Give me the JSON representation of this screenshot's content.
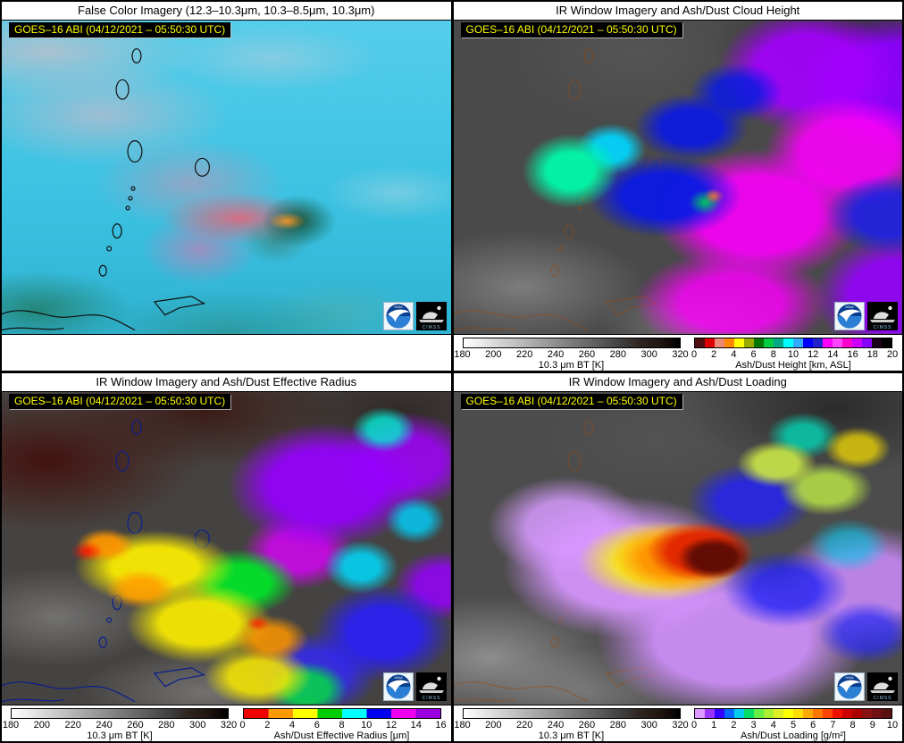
{
  "panels": [
    {
      "title": "False Color Imagery (12.3–10.3μm, 10.3–8.5μm, 10.3μm)",
      "timestamp": "GOES–16 ABI (04/12/2021 – 05:50:30 UTC)"
    },
    {
      "title": "IR Window Imagery and Ash/Dust Cloud Height",
      "timestamp": "GOES–16 ABI (04/12/2021 – 05:50:30 UTC)",
      "bt_bar": {
        "label": "10.3 μm BT [K]",
        "ticks": [
          "180",
          "200",
          "220",
          "240",
          "260",
          "280",
          "300",
          "320"
        ],
        "colors": [
          "#ffffff",
          "#e8e8e8",
          "#d0d0d0",
          "#b8b8b8",
          "#a0a0a0",
          "#888888",
          "#707070",
          "#585858",
          "#404040",
          "#2e2420",
          "#201410",
          "#000000"
        ]
      },
      "data_bar": {
        "label": "Ash/Dust Height [km, ASL]",
        "ticks": [
          "0",
          "2",
          "4",
          "6",
          "8",
          "10",
          "12",
          "14",
          "16",
          "18",
          "20"
        ],
        "colors": [
          "#501010",
          "#dd0000",
          "#ee8877",
          "#ff8800",
          "#ffff00",
          "#99aa00",
          "#007700",
          "#00cc44",
          "#00aa88",
          "#00ffff",
          "#33aaff",
          "#0000ff",
          "#2222cc",
          "#ff00ff",
          "#ff44ff",
          "#ff00cc",
          "#cc00ff",
          "#8800ff",
          "#1a001a",
          "#000000"
        ]
      }
    },
    {
      "title": "IR Window Imagery and Ash/Dust Effective Radius",
      "timestamp": "GOES–16 ABI (04/12/2021 – 05:50:30 UTC)",
      "bt_bar": {
        "label": "10.3 μm BT [K]",
        "ticks": [
          "180",
          "200",
          "220",
          "240",
          "260",
          "280",
          "300",
          "320"
        ],
        "colors": [
          "#ffffff",
          "#e8e8e8",
          "#d0d0d0",
          "#b8b8b8",
          "#a0a0a0",
          "#888888",
          "#707070",
          "#585858",
          "#404040",
          "#2e2420",
          "#201410",
          "#000000"
        ]
      },
      "data_bar": {
        "label": "Ash/Dust Effective Radius [μm]",
        "ticks": [
          "0",
          "2",
          "4",
          "6",
          "8",
          "10",
          "12",
          "14",
          "16"
        ],
        "colors": [
          "#ee0000",
          "#ff9900",
          "#ffff00",
          "#00cc00",
          "#00ffff",
          "#0000ee",
          "#ee00ee",
          "#9900dd"
        ]
      }
    },
    {
      "title": "IR Window Imagery and Ash/Dust Loading",
      "timestamp": "GOES–16 ABI (04/12/2021 – 05:50:30 UTC)",
      "bt_bar": {
        "label": "10.3 μm BT [K]",
        "ticks": [
          "180",
          "200",
          "220",
          "240",
          "260",
          "280",
          "300",
          "320"
        ],
        "colors": [
          "#ffffff",
          "#e8e8e8",
          "#d0d0d0",
          "#b8b8b8",
          "#a0a0a0",
          "#888888",
          "#707070",
          "#585858",
          "#404040",
          "#2e2420",
          "#201410",
          "#000000"
        ]
      },
      "data_bar": {
        "label": "Ash/Dust Loading [g/m²]",
        "ticks": [
          "0",
          "1",
          "2",
          "3",
          "4",
          "5",
          "6",
          "7",
          "8",
          "9",
          "10"
        ],
        "colors": [
          "#dd99ff",
          "#9933ff",
          "#3300ff",
          "#0066ff",
          "#00ccee",
          "#00dd66",
          "#66ee44",
          "#aaee33",
          "#ddee22",
          "#ffff00",
          "#ffdd00",
          "#ffaa00",
          "#ff7700",
          "#ff4400",
          "#ee1100",
          "#cc0000",
          "#aa0000",
          "#881111",
          "#701010",
          "#5a1010"
        ]
      }
    }
  ],
  "logos": {
    "noaa": "NOAA",
    "cimss": "CIMSS"
  },
  "chart_data": [
    {
      "type": "heatmap",
      "title": "False Color Imagery (12.3–10.3μm, 10.3–8.5μm, 10.3μm)",
      "timestamp": "GOES–16 ABI (04/12/2021 – 05:50:30 UTC)",
      "description": "RGB false-color satellite scene over the Lesser Antilles: cyan ocean/cloud background, pale pink cirrus, pink-red volcanic ash plume with dark green head and orange hot spot near the volcano, black coastline outlines",
      "colorbars": []
    },
    {
      "type": "heatmap",
      "title": "IR Window Imagery and Ash/Dust Cloud Height",
      "timestamp": "GOES–16 ABI (04/12/2021 – 05:50:30 UTC)",
      "description": "Gray IR window background; retrieved ash cloud height overlay: spring-green ~8-9 km patch west, cyan ~10 km, blue ~11-12 km core, magenta ~13-15 km broad region, purple ~16-18 km east",
      "colorbars": [
        {
          "label": "10.3 μm BT [K]",
          "range": [
            180,
            320
          ],
          "ticks": [
            180,
            200,
            220,
            240,
            260,
            280,
            300,
            320
          ]
        },
        {
          "label": "Ash/Dust Height [km, ASL]",
          "range": [
            0,
            20
          ],
          "ticks": [
            0,
            2,
            4,
            6,
            8,
            10,
            12,
            14,
            16,
            18,
            20
          ]
        }
      ]
    },
    {
      "type": "heatmap",
      "title": "IR Window Imagery and Ash/Dust Effective Radius",
      "timestamp": "GOES–16 ABI (04/12/2021 – 05:50:30 UTC)",
      "description": "Dark maroon/gray IR background; effective radius overlay: red/orange ~1-3 μm at western plume edge, broad yellow ~4-6 μm, green ~6-8 μm blob center, cyan/blue ~8-12 μm southeast, magenta/purple ~12-16 μm northeast",
      "colorbars": [
        {
          "label": "10.3 μm BT [K]",
          "range": [
            180,
            320
          ],
          "ticks": [
            180,
            200,
            220,
            240,
            260,
            280,
            300,
            320
          ]
        },
        {
          "label": "Ash/Dust Effective Radius [μm]",
          "range": [
            0,
            16
          ],
          "ticks": [
            0,
            2,
            4,
            6,
            8,
            10,
            12,
            14,
            16
          ]
        }
      ]
    },
    {
      "type": "heatmap",
      "title": "IR Window Imagery and Ash/Dust Loading",
      "timestamp": "GOES–16 ABI (04/12/2021 – 05:50:30 UTC)",
      "description": "Gray IR background; ash loading overlay: broad lavender ~0-1 g/m² plume, blue ~1-2 g/m² patches, yellow-green ~3-4 g/m² northeast, central maximum ringed yellow-orange-red rising to dark maroon ~9-10 g/m²",
      "colorbars": [
        {
          "label": "10.3 μm BT [K]",
          "range": [
            180,
            320
          ],
          "ticks": [
            180,
            200,
            220,
            240,
            260,
            280,
            300,
            320
          ]
        },
        {
          "label": "Ash/Dust Loading [g/m²]",
          "range": [
            0,
            10
          ],
          "ticks": [
            0,
            1,
            2,
            3,
            4,
            5,
            6,
            7,
            8,
            9,
            10
          ]
        }
      ]
    }
  ]
}
